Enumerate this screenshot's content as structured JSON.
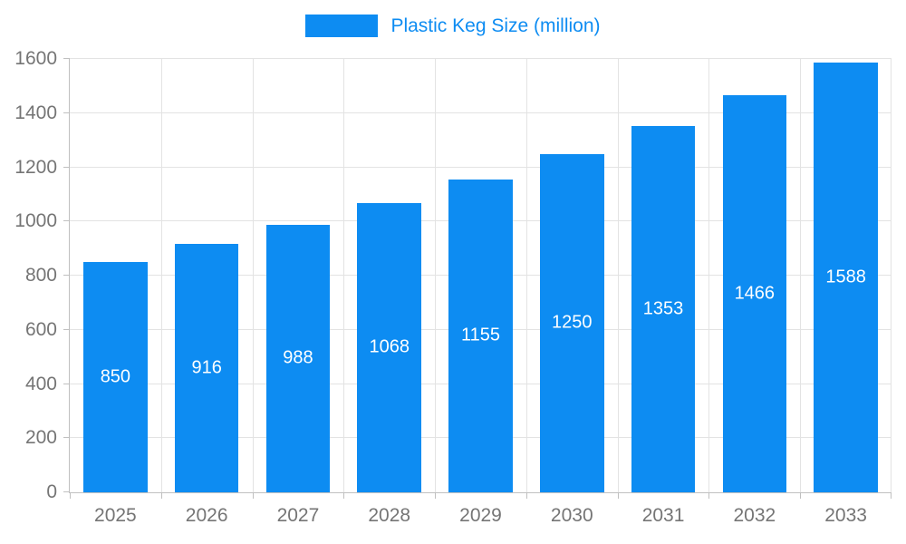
{
  "chart_data": {
    "type": "bar",
    "title": "",
    "legend": {
      "label": "Plastic Keg Size (million)",
      "position": "top-center"
    },
    "categories": [
      "2025",
      "2026",
      "2027",
      "2028",
      "2029",
      "2030",
      "2031",
      "2032",
      "2033"
    ],
    "series": [
      {
        "name": "Plastic Keg Size (million)",
        "values": [
          850,
          916,
          988,
          1068,
          1155,
          1250,
          1353,
          1466,
          1588
        ]
      }
    ],
    "xlabel": "",
    "ylabel": "",
    "ylim": [
      0,
      1600
    ],
    "yticks": [
      0,
      200,
      400,
      600,
      800,
      1000,
      1200,
      1400,
      1600
    ],
    "grid": true,
    "value_labels": "inside-center",
    "colors": {
      "bar": "#0d8cf2",
      "legend_text": "#0d8cf2",
      "bar_label_text": "#ffffff",
      "axis_text": "#757575",
      "grid_line": "#e3e3e3",
      "axis_line": "#c0c0c0"
    }
  }
}
